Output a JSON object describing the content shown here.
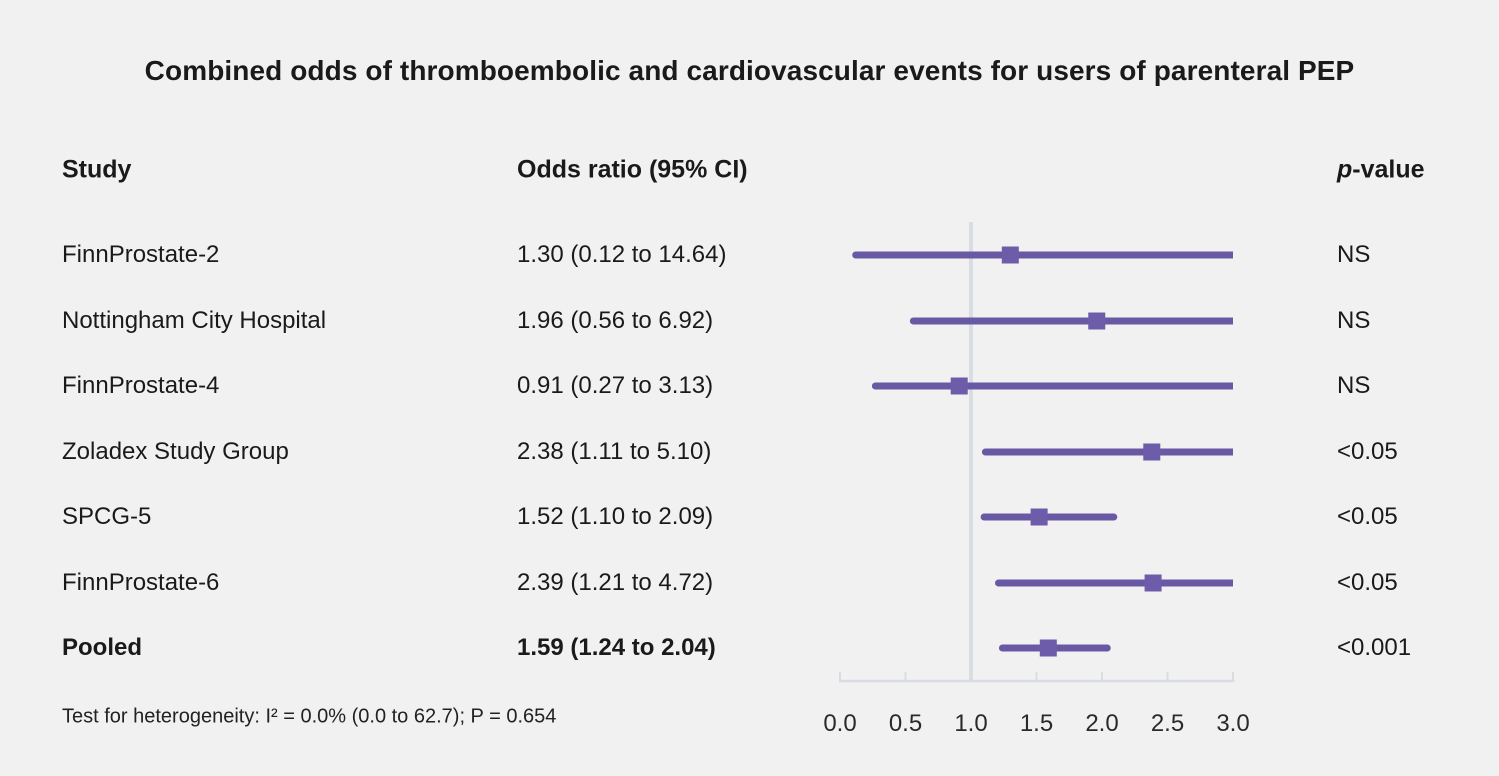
{
  "figure": {
    "title": "Combined odds of thromboembolic and cardiovascular events for users of parenteral PEP",
    "columns": {
      "study": "Study",
      "odds_ratio": "Odds ratio (95% CI)",
      "p_value_italic": "p",
      "p_value_rest": "-value"
    },
    "footnote": "Test for heterogeneity: I² = 0.0% (0.0 to 62.7); P = 0.654"
  },
  "chart_data": {
    "type": "forest",
    "title": "Combined odds of thromboembolic and cardiovascular events for users of parenteral PEP",
    "x_axis": {
      "xlim": [
        0.0,
        3.0
      ],
      "ticks": [
        0.0,
        0.5,
        1.0,
        1.5,
        2.0,
        2.5,
        3.0
      ],
      "tick_labels": [
        "0.0",
        "0.5",
        "1.0",
        "1.5",
        "2.0",
        "2.5",
        "3.0"
      ],
      "reference_line": 1.0
    },
    "rows": [
      {
        "study": "FinnProstate-2",
        "or": 1.3,
        "ci_low": 0.12,
        "ci_high": 14.64,
        "or_label": "1.30 (0.12 to 14.64)",
        "p_value": "NS",
        "bold": false
      },
      {
        "study": "Nottingham City Hospital",
        "or": 1.96,
        "ci_low": 0.56,
        "ci_high": 6.92,
        "or_label": "1.96 (0.56 to 6.92)",
        "p_value": "NS",
        "bold": false
      },
      {
        "study": "FinnProstate-4",
        "or": 0.91,
        "ci_low": 0.27,
        "ci_high": 3.13,
        "or_label": "0.91 (0.27 to 3.13)",
        "p_value": "NS",
        "bold": false
      },
      {
        "study": "Zoladex Study Group",
        "or": 2.38,
        "ci_low": 1.11,
        "ci_high": 5.1,
        "or_label": "2.38 (1.11 to 5.10)",
        "p_value": "<0.05",
        "bold": false
      },
      {
        "study": "SPCG-5",
        "or": 1.52,
        "ci_low": 1.1,
        "ci_high": 2.09,
        "or_label": "1.52 (1.10 to 2.09)",
        "p_value": "<0.05",
        "bold": false
      },
      {
        "study": "FinnProstate-6",
        "or": 2.39,
        "ci_low": 1.21,
        "ci_high": 4.72,
        "or_label": "2.39 (1.21 to 4.72)",
        "p_value": "<0.05",
        "bold": false
      },
      {
        "study": "Pooled",
        "or": 1.59,
        "ci_low": 1.24,
        "ci_high": 2.04,
        "or_label": "1.59 (1.24 to 2.04)",
        "p_value": "<0.001",
        "bold": true
      }
    ],
    "colors": {
      "ci_line": "#6959a5",
      "marker": "#6d5caa",
      "axis": "#d8dde3",
      "background": "#f2f1f1",
      "text": "#1a1a1a"
    },
    "legend": null,
    "grid": false
  }
}
